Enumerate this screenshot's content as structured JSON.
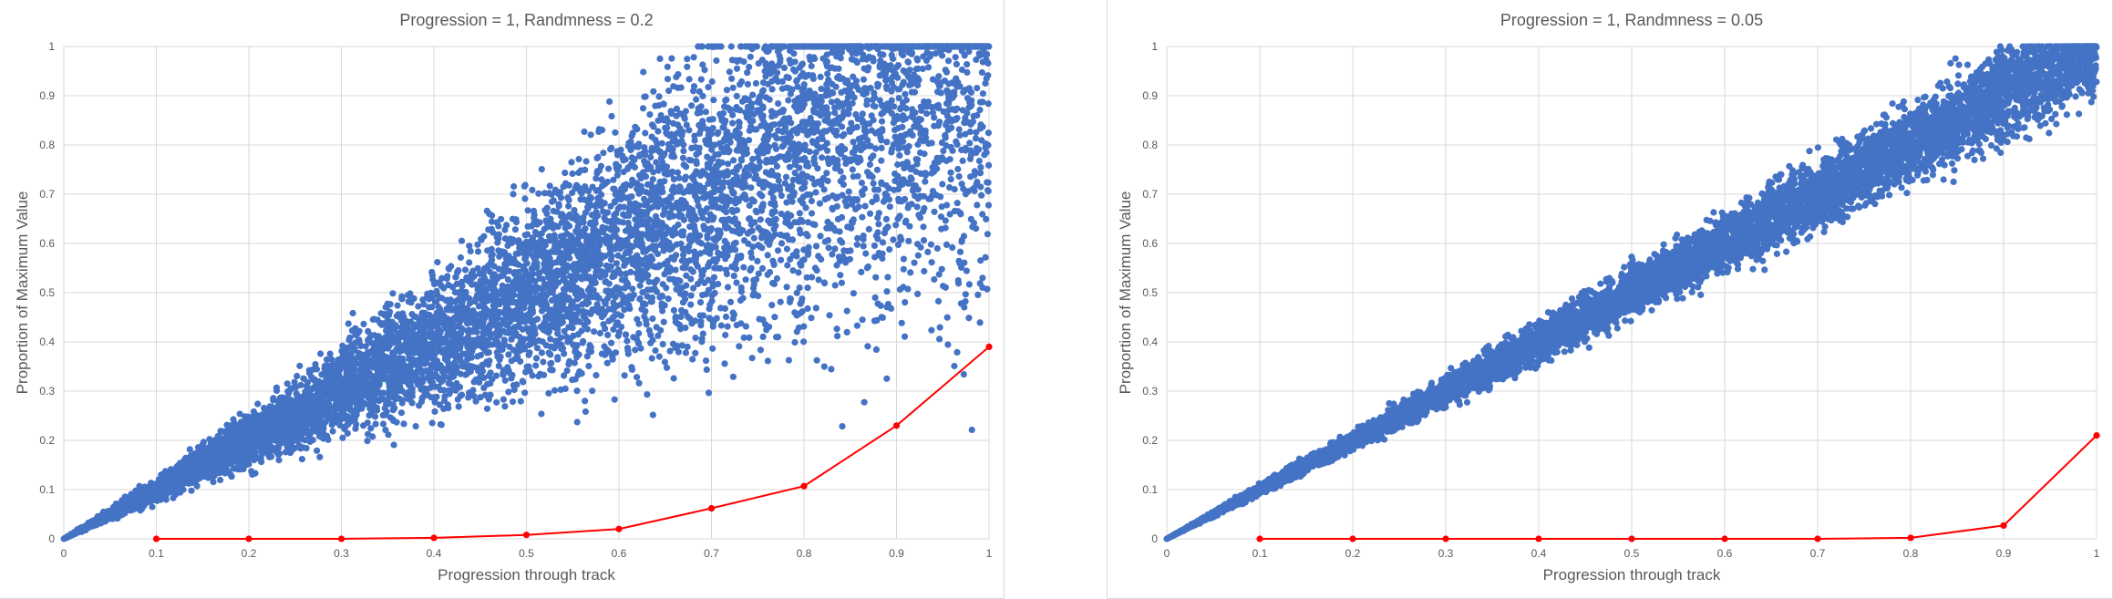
{
  "chart_data": [
    {
      "type": "scatter",
      "title": "Progression = 1, Randmness = 0.2",
      "xlabel": "Progression through track",
      "ylabel": "Proportion of Maximum Value",
      "xlim": [
        0,
        1
      ],
      "ylim": [
        0,
        1
      ],
      "x_ticks": [
        "0",
        "0.1",
        "0.2",
        "0.3",
        "0.4",
        "0.5",
        "0.6",
        "0.7",
        "0.8",
        "0.9",
        "1"
      ],
      "y_ticks": [
        "0",
        "0.1",
        "0.2",
        "0.3",
        "0.4",
        "0.5",
        "0.6",
        "0.7",
        "0.8",
        "0.9",
        "1"
      ],
      "grid": true,
      "legend": false,
      "scatter": {
        "color": "#4472c4",
        "trend": "y ≈ x",
        "spread": 0.2,
        "point_count": 8000
      },
      "line": {
        "color": "#ff0000",
        "x": [
          0.1,
          0.2,
          0.3,
          0.4,
          0.5,
          0.6,
          0.7,
          0.8,
          0.9,
          1.0
        ],
        "y": [
          0.0,
          0.0,
          0.0,
          0.002,
          0.008,
          0.02,
          0.062,
          0.107,
          0.23,
          0.39
        ]
      }
    },
    {
      "type": "scatter",
      "title": "Progression = 1, Randmness = 0.05",
      "xlabel": "Progression through track",
      "ylabel": "Proportion of Maximum Value",
      "xlim": [
        0,
        1
      ],
      "ylim": [
        0,
        1
      ],
      "x_ticks": [
        "0",
        "0.1",
        "0.2",
        "0.3",
        "0.4",
        "0.5",
        "0.6",
        "0.7",
        "0.8",
        "0.9",
        "1"
      ],
      "y_ticks": [
        "0",
        "0.1",
        "0.2",
        "0.3",
        "0.4",
        "0.5",
        "0.6",
        "0.7",
        "0.8",
        "0.9",
        "1"
      ],
      "grid": true,
      "legend": false,
      "scatter": {
        "color": "#4472c4",
        "trend": "y ≈ x",
        "spread": 0.05,
        "point_count": 8000
      },
      "line": {
        "color": "#ff0000",
        "x": [
          0.1,
          0.2,
          0.3,
          0.4,
          0.5,
          0.6,
          0.7,
          0.8,
          0.9,
          1.0
        ],
        "y": [
          0.0,
          0.0,
          0.0,
          0.0,
          0.0,
          0.0,
          0.0,
          0.002,
          0.027,
          0.21
        ]
      }
    }
  ]
}
